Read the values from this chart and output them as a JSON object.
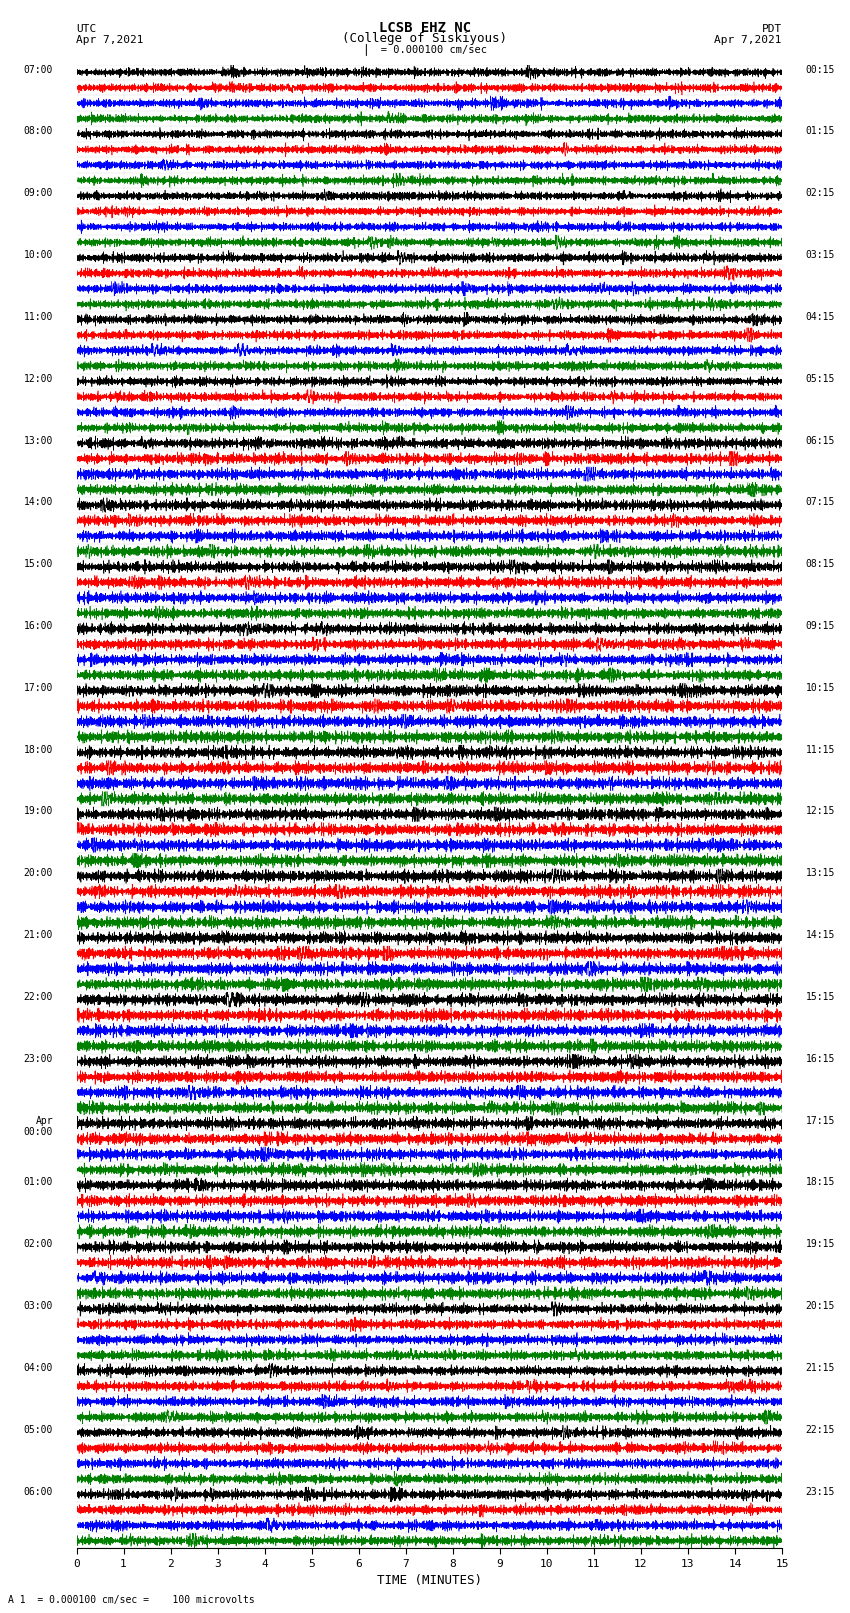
{
  "title_line1": "LCSB EHZ NC",
  "title_line2": "(College of Siskiyous)",
  "scale_text": "  = 0.000100 cm/sec",
  "left_header_line1": "UTC",
  "left_header_line2": "Apr 7,2021",
  "right_header_line1": "PDT",
  "right_header_line2": "Apr 7,2021",
  "xlabel": "TIME (MINUTES)",
  "footnote": "A 1  = 0.000100 cm/sec =    100 microvolts",
  "xlim": [
    0,
    15
  ],
  "xticks": [
    0,
    1,
    2,
    3,
    4,
    5,
    6,
    7,
    8,
    9,
    10,
    11,
    12,
    13,
    14,
    15
  ],
  "fig_width": 8.5,
  "fig_height": 16.13,
  "bg_color": "#ffffff",
  "trace_colors": [
    "black",
    "red",
    "blue",
    "green"
  ],
  "left_times": [
    "07:00",
    "08:00",
    "09:00",
    "10:00",
    "11:00",
    "12:00",
    "13:00",
    "14:00",
    "15:00",
    "16:00",
    "17:00",
    "18:00",
    "19:00",
    "20:00",
    "21:00",
    "22:00",
    "23:00",
    "Apr\n00:00",
    "01:00",
    "02:00",
    "03:00",
    "04:00",
    "05:00",
    "06:00"
  ],
  "right_times": [
    "00:15",
    "01:15",
    "02:15",
    "03:15",
    "04:15",
    "05:15",
    "06:15",
    "07:15",
    "08:15",
    "09:15",
    "10:15",
    "11:15",
    "12:15",
    "13:15",
    "14:15",
    "15:15",
    "16:15",
    "17:15",
    "18:15",
    "19:15",
    "20:15",
    "21:15",
    "22:15",
    "23:15"
  ],
  "num_hour_blocks": 24,
  "channels_per_block": 4,
  "seed": 42
}
